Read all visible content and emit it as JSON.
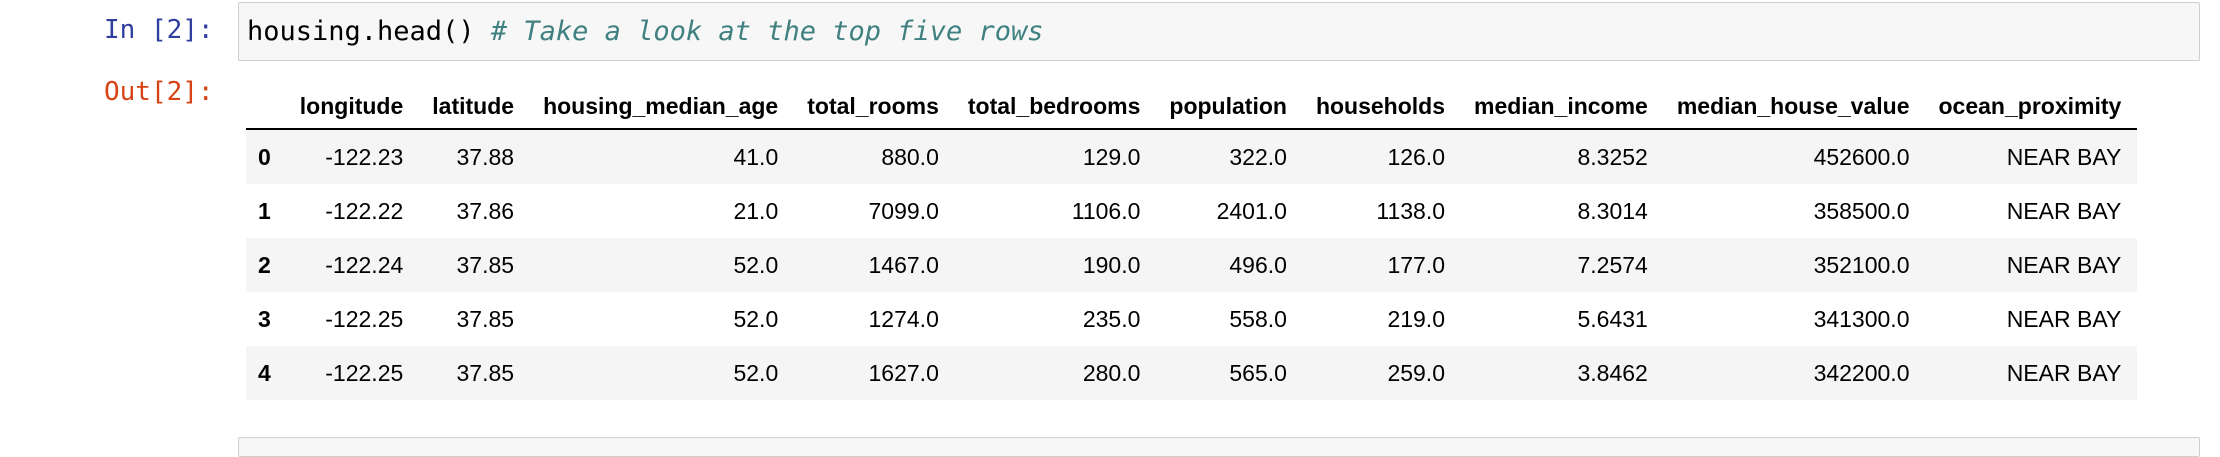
{
  "input_cell": {
    "prompt": "In [2]:",
    "code": "housing.head() ",
    "comment": "# Take a look at the top five rows"
  },
  "output_cell": {
    "prompt": "Out[2]:"
  },
  "table": {
    "columns": [
      "",
      "longitude",
      "latitude",
      "housing_median_age",
      "total_rooms",
      "total_bedrooms",
      "population",
      "households",
      "median_income",
      "median_house_value",
      "ocean_proximity"
    ],
    "rows": [
      [
        "0",
        "-122.23",
        "37.88",
        "41.0",
        "880.0",
        "129.0",
        "322.0",
        "126.0",
        "8.3252",
        "452600.0",
        "NEAR BAY"
      ],
      [
        "1",
        "-122.22",
        "37.86",
        "21.0",
        "7099.0",
        "1106.0",
        "2401.0",
        "1138.0",
        "8.3014",
        "358500.0",
        "NEAR BAY"
      ],
      [
        "2",
        "-122.24",
        "37.85",
        "52.0",
        "1467.0",
        "190.0",
        "496.0",
        "177.0",
        "7.2574",
        "352100.0",
        "NEAR BAY"
      ],
      [
        "3",
        "-122.25",
        "37.85",
        "52.0",
        "1274.0",
        "235.0",
        "558.0",
        "219.0",
        "5.6431",
        "341300.0",
        "NEAR BAY"
      ],
      [
        "4",
        "-122.25",
        "37.85",
        "52.0",
        "1627.0",
        "280.0",
        "565.0",
        "259.0",
        "3.8462",
        "342200.0",
        "NEAR BAY"
      ]
    ]
  }
}
